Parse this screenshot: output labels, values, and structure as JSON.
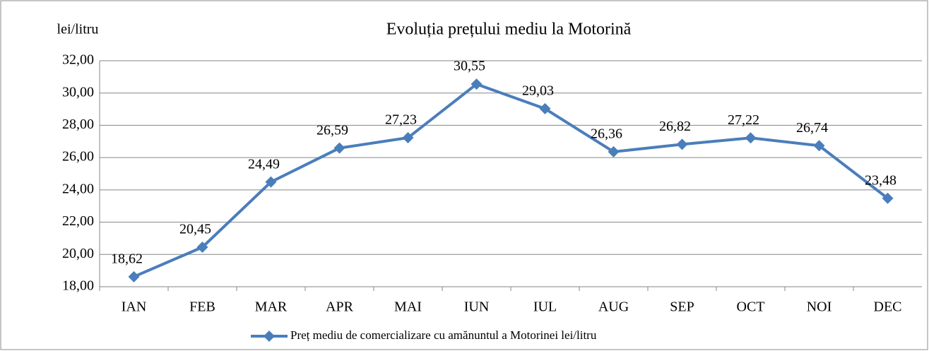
{
  "chart_data": {
    "type": "line",
    "title": "Evoluția prețului mediu la Motorină",
    "y_axis_label": "lei/litru",
    "categories": [
      "IAN",
      "FEB",
      "MAR",
      "APR",
      "MAI",
      "IUN",
      "IUL",
      "AUG",
      "SEP",
      "OCT",
      "NOI",
      "DEC"
    ],
    "series": [
      {
        "name": "Preț mediu de comercializare cu amănuntul a Motorinei lei/litru",
        "color": "#4a7ebb",
        "values": [
          18.62,
          20.45,
          24.49,
          26.59,
          27.23,
          30.55,
          29.03,
          26.36,
          26.82,
          27.22,
          26.74,
          23.48
        ],
        "value_labels": [
          "18,62",
          "20,45",
          "24,49",
          "26,59",
          "27,23",
          "30,55",
          "29,03",
          "26,36",
          "26,82",
          "27,22",
          "26,74",
          "23,48"
        ]
      }
    ],
    "ylim": [
      18,
      32
    ],
    "yticks": [
      {
        "value": 18,
        "label": "18,00"
      },
      {
        "value": 20,
        "label": "20,00"
      },
      {
        "value": 22,
        "label": "22,00"
      },
      {
        "value": 24,
        "label": "24,00"
      },
      {
        "value": 26,
        "label": "26,00"
      },
      {
        "value": 28,
        "label": "28,00"
      },
      {
        "value": 30,
        "label": "30,00"
      },
      {
        "value": 32,
        "label": "32,00"
      }
    ],
    "grid": true,
    "legend": "bottom"
  }
}
